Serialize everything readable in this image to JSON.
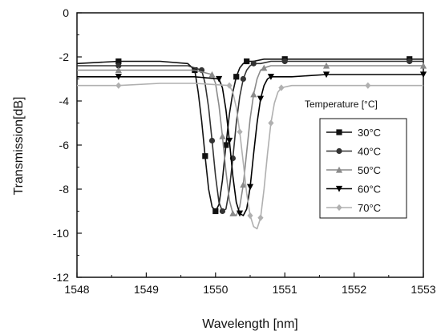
{
  "chart_data": {
    "type": "line",
    "title": "",
    "xlabel": "Wavelength [nm]",
    "ylabel": "Transmission[dB]",
    "xlim": [
      1548,
      1553
    ],
    "ylim": [
      -12,
      0
    ],
    "xticks": [
      1548,
      1549,
      1550,
      1551,
      1552,
      1553
    ],
    "yticks": [
      0,
      -2,
      -4,
      -6,
      -8,
      -10,
      -12
    ],
    "legend_title": "Temperature [°C]",
    "legend_position": "right",
    "grid": false,
    "series": [
      {
        "name": "30°C",
        "color": "#111111",
        "marker": "square",
        "x": [
          1548.0,
          1548.6,
          1549.2,
          1549.6,
          1549.7,
          1549.75,
          1549.8,
          1549.85,
          1549.9,
          1549.95,
          1550.0,
          1550.05,
          1550.1,
          1550.15,
          1550.2,
          1550.25,
          1550.3,
          1550.35,
          1550.4,
          1550.45,
          1550.55,
          1550.7,
          1551.0,
          1551.6,
          1552.2,
          1552.8,
          1553.0
        ],
        "y": [
          -2.3,
          -2.2,
          -2.2,
          -2.3,
          -2.6,
          -3.6,
          -4.9,
          -6.5,
          -8.0,
          -8.8,
          -9.0,
          -8.7,
          -7.6,
          -6.0,
          -4.6,
          -3.6,
          -2.9,
          -2.5,
          -2.3,
          -2.2,
          -2.2,
          -2.1,
          -2.1,
          -2.1,
          -2.1,
          -2.1,
          -2.1
        ]
      },
      {
        "name": "40°C",
        "color": "#333333",
        "marker": "circle",
        "x": [
          1548.0,
          1548.6,
          1549.2,
          1549.6,
          1549.8,
          1549.85,
          1549.9,
          1549.95,
          1550.0,
          1550.05,
          1550.1,
          1550.15,
          1550.2,
          1550.25,
          1550.3,
          1550.35,
          1550.4,
          1550.45,
          1550.5,
          1550.55,
          1550.65,
          1550.8,
          1551.0,
          1551.6,
          1552.2,
          1552.8,
          1553.0
        ],
        "y": [
          -2.4,
          -2.4,
          -2.4,
          -2.4,
          -2.6,
          -3.2,
          -4.3,
          -5.8,
          -7.4,
          -8.6,
          -9.0,
          -8.9,
          -8.0,
          -6.6,
          -5.0,
          -3.8,
          -3.0,
          -2.6,
          -2.4,
          -2.3,
          -2.3,
          -2.2,
          -2.2,
          -2.2,
          -2.2,
          -2.2,
          -2.2
        ]
      },
      {
        "name": "50°C",
        "color": "#8a8a8a",
        "marker": "triangle-up",
        "x": [
          1548.0,
          1548.6,
          1549.2,
          1549.7,
          1549.95,
          1550.0,
          1550.05,
          1550.1,
          1550.15,
          1550.2,
          1550.25,
          1550.3,
          1550.35,
          1550.4,
          1550.45,
          1550.5,
          1550.55,
          1550.6,
          1550.65,
          1550.7,
          1550.8,
          1551.0,
          1551.6,
          1552.2,
          1552.8,
          1553.0
        ],
        "y": [
          -2.6,
          -2.6,
          -2.6,
          -2.6,
          -2.8,
          -3.2,
          -4.2,
          -5.6,
          -7.2,
          -8.5,
          -9.1,
          -9.2,
          -8.8,
          -7.8,
          -6.3,
          -4.8,
          -3.7,
          -3.0,
          -2.6,
          -2.5,
          -2.4,
          -2.4,
          -2.4,
          -2.4,
          -2.4,
          -2.4
        ]
      },
      {
        "name": "60°C",
        "color": "#000000",
        "marker": "triangle-down",
        "x": [
          1548.0,
          1548.6,
          1549.2,
          1549.7,
          1550.05,
          1550.1,
          1550.15,
          1550.2,
          1550.25,
          1550.3,
          1550.35,
          1550.4,
          1550.45,
          1550.5,
          1550.55,
          1550.6,
          1550.65,
          1550.7,
          1550.75,
          1550.8,
          1550.9,
          1551.1,
          1551.6,
          1552.2,
          1552.8,
          1553.0
        ],
        "y": [
          -2.9,
          -2.9,
          -2.9,
          -2.9,
          -3.0,
          -3.4,
          -4.4,
          -5.8,
          -7.4,
          -8.6,
          -9.1,
          -9.2,
          -8.9,
          -7.9,
          -6.4,
          -5.0,
          -3.9,
          -3.3,
          -3.0,
          -2.9,
          -2.9,
          -2.9,
          -2.8,
          -2.8,
          -2.8,
          -2.8
        ]
      },
      {
        "name": "70°C",
        "color": "#b0b0b0",
        "marker": "diamond",
        "x": [
          1548.0,
          1548.6,
          1549.2,
          1549.7,
          1550.2,
          1550.25,
          1550.3,
          1550.35,
          1550.4,
          1550.45,
          1550.5,
          1550.55,
          1550.6,
          1550.65,
          1550.7,
          1550.75,
          1550.8,
          1550.85,
          1550.9,
          1550.95,
          1551.1,
          1551.6,
          1552.2,
          1552.8,
          1553.0
        ],
        "y": [
          -3.3,
          -3.3,
          -3.2,
          -3.2,
          -3.3,
          -3.6,
          -4.3,
          -5.4,
          -6.8,
          -8.2,
          -9.2,
          -9.7,
          -9.8,
          -9.3,
          -8.0,
          -6.4,
          -5.0,
          -4.1,
          -3.6,
          -3.4,
          -3.3,
          -3.3,
          -3.3,
          -3.3,
          -3.3
        ]
      }
    ]
  }
}
